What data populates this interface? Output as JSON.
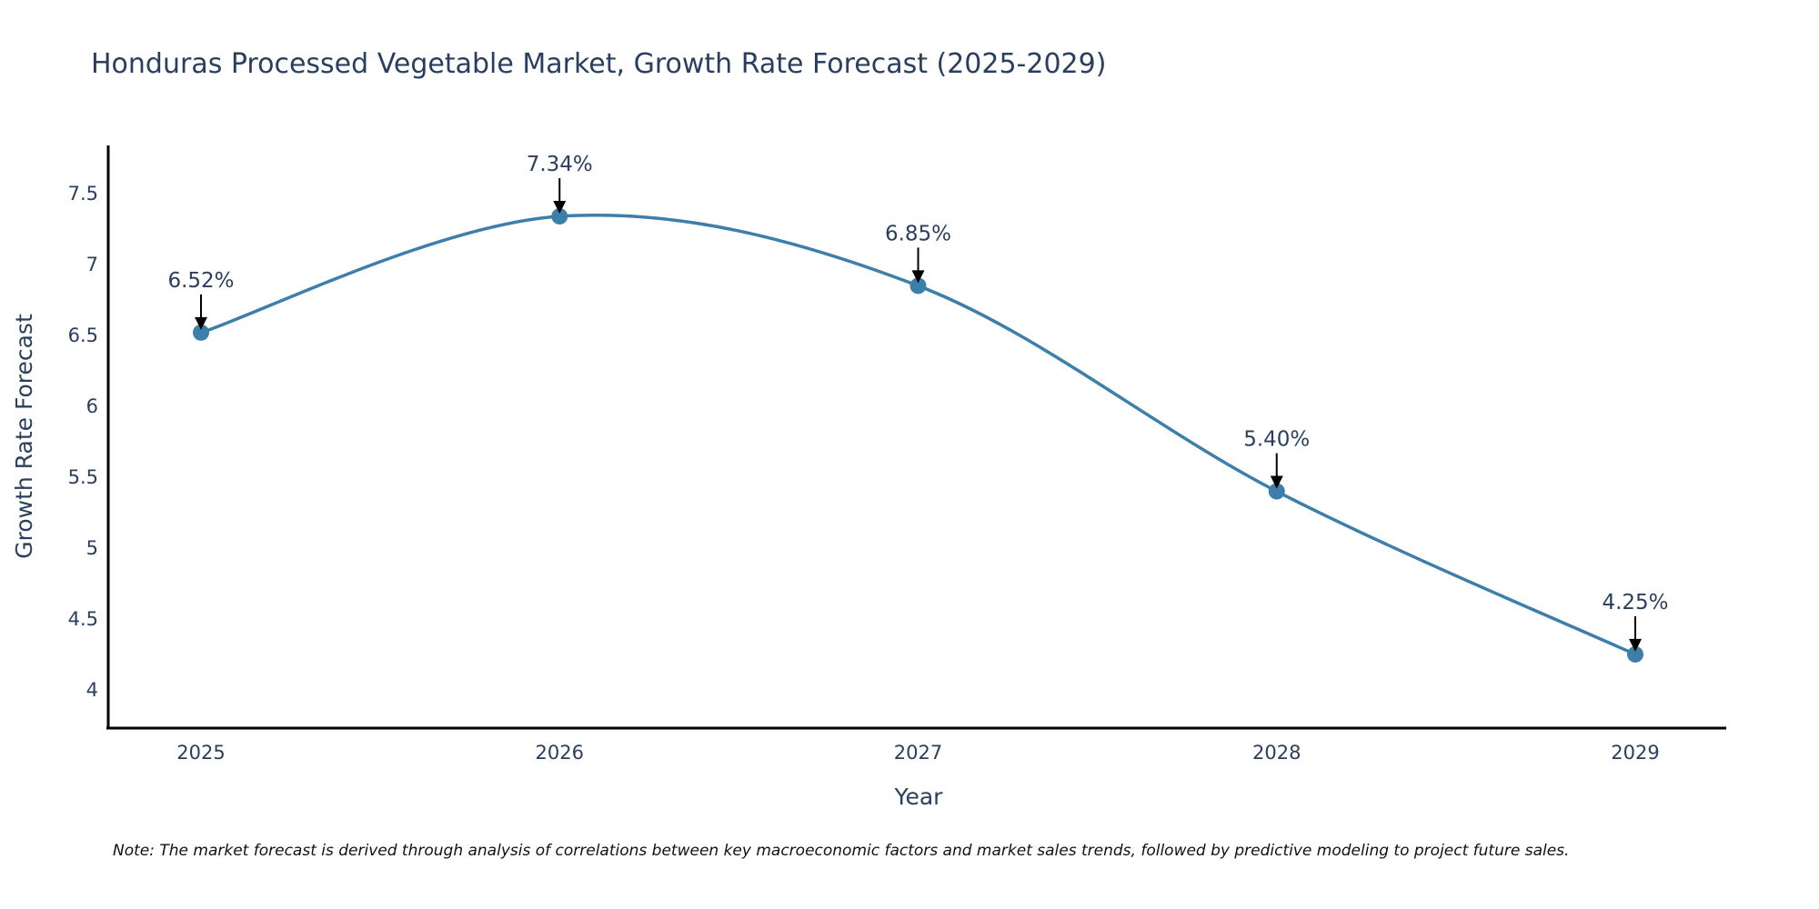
{
  "chart_data": {
    "type": "line",
    "title": "Honduras Processed Vegetable Market, Growth Rate Forecast (2025-2029)",
    "xlabel": "Year",
    "ylabel": "Growth Rate Forecast",
    "categories": [
      "2025",
      "2026",
      "2027",
      "2028",
      "2029"
    ],
    "series": [
      {
        "name": "Growth Rate Forecast",
        "values": [
          6.52,
          7.34,
          6.85,
          5.4,
          4.25
        ],
        "labels": [
          "6.52%",
          "7.34%",
          "6.85%",
          "5.40%",
          "4.25%"
        ],
        "color": "#3d7eaa",
        "line_shape": "spline",
        "markers": true
      }
    ],
    "ylim": [
      3.73,
      7.84
    ],
    "yticks": [
      4,
      4.5,
      5,
      5.5,
      6,
      6.5,
      7,
      7.5
    ],
    "ytick_labels": [
      "4",
      "4.5",
      "5",
      "5.5",
      "6",
      "6.5",
      "7",
      "7.5"
    ],
    "grid": false,
    "legend": "none",
    "annotations": "arrow labels above each point",
    "note": "Note: The market forecast is derived through analysis of correlations between key macroeconomic factors and market sales trends, followed by predictive modeling to project future sales."
  }
}
